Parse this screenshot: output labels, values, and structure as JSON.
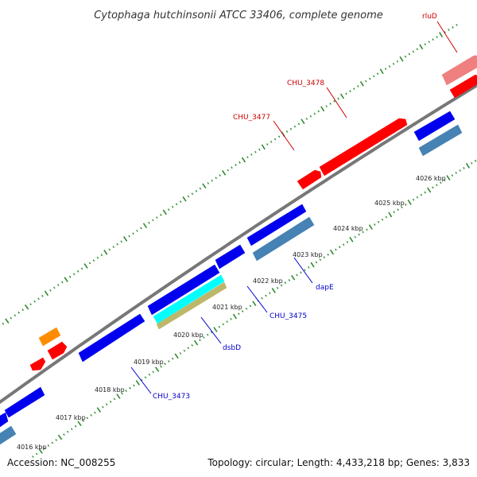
{
  "title": "Cytophaga hutchinsonii ATCC 33406, complete genome",
  "footer": {
    "accession": "Accession: NC_008255",
    "summary": "Topology: circular; Length: 4,433,218 bp; Genes: 3,833"
  },
  "colors": {
    "forward_gene": "#ff0000",
    "forward_rna": "#ff8c00",
    "forward_pseudo": "#f08080",
    "reverse_gene": "#0000ee",
    "reverse_light": "#4682b4",
    "reverse_cyan": "#00ffff",
    "reverse_tan": "#bdb76b",
    "backbone": "#777777",
    "tick": "#2e8b2e",
    "forward_label": "#cc0000",
    "reverse_label": "#0000cc"
  },
  "scale": {
    "labels": [
      "4016 kbp",
      "4017 kbp",
      "4018 kbp",
      "4019 kbp",
      "4020 kbp",
      "4021 kbp",
      "4022 kbp",
      "4023 kbp",
      "4024 kbp",
      "4025 kbp",
      "4026 kbp"
    ]
  },
  "forward_labels": [
    {
      "key": "chu3477",
      "text": "CHU_3477"
    },
    {
      "key": "chu3478",
      "text": "CHU_3478"
    },
    {
      "key": "rlud",
      "text": "rluD"
    }
  ],
  "reverse_labels": [
    {
      "key": "chu3473",
      "text": "CHU_3473"
    },
    {
      "key": "dsbd",
      "text": "dsbD"
    },
    {
      "key": "chu3475",
      "text": "CHU_3475"
    },
    {
      "key": "dape",
      "text": "dapE"
    }
  ],
  "genes": [
    {
      "key": "f1",
      "strand": "forward",
      "kind": "forward_gene"
    },
    {
      "key": "f2",
      "strand": "forward",
      "kind": "forward_rna"
    },
    {
      "key": "f3",
      "strand": "forward",
      "kind": "forward_gene"
    },
    {
      "key": "f4",
      "strand": "forward",
      "kind": "forward_gene"
    },
    {
      "key": "f5",
      "strand": "forward",
      "kind": "forward_gene"
    },
    {
      "key": "f6",
      "strand": "forward",
      "kind": "forward_pseudo"
    },
    {
      "key": "f7",
      "strand": "forward",
      "kind": "forward_gene"
    },
    {
      "key": "r1",
      "strand": "reverse",
      "kind": "reverse_gene"
    },
    {
      "key": "r2",
      "strand": "reverse",
      "kind": "reverse_light"
    },
    {
      "key": "r3",
      "strand": "reverse",
      "kind": "reverse_gene"
    },
    {
      "key": "r4",
      "strand": "reverse",
      "kind": "reverse_gene"
    },
    {
      "key": "r5",
      "strand": "reverse",
      "kind": "reverse_cyan"
    },
    {
      "key": "r6",
      "strand": "reverse",
      "kind": "reverse_tan"
    },
    {
      "key": "r7",
      "strand": "reverse",
      "kind": "reverse_gene"
    },
    {
      "key": "r8",
      "strand": "reverse",
      "kind": "reverse_gene"
    },
    {
      "key": "r9",
      "strand": "reverse",
      "kind": "reverse_light"
    },
    {
      "key": "r10",
      "strand": "reverse",
      "kind": "reverse_gene"
    },
    {
      "key": "r11",
      "strand": "reverse",
      "kind": "reverse_light"
    }
  ]
}
